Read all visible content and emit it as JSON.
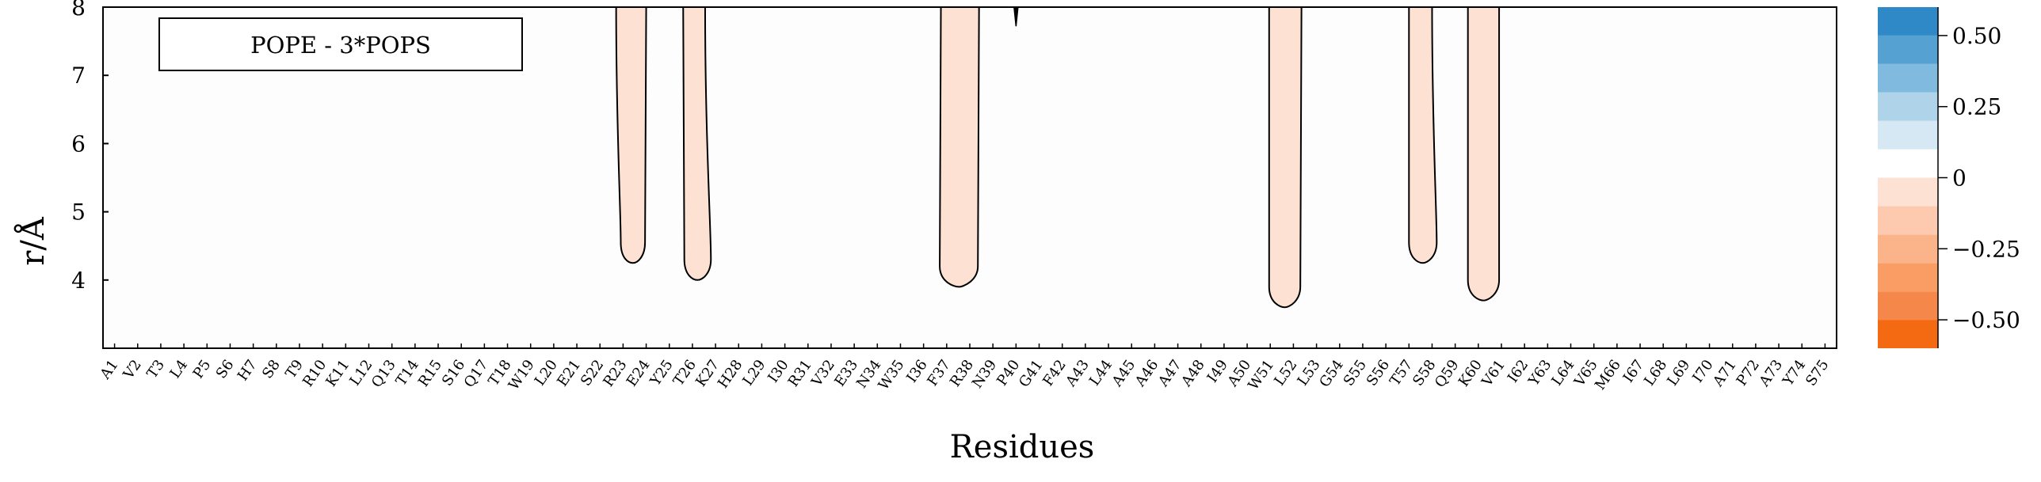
{
  "chart_data": {
    "type": "contour",
    "title": "",
    "legend_label": "POPE - 3*POPS",
    "xlabel": "Residues",
    "ylabel": "r/Å",
    "ylim": [
      3,
      8
    ],
    "yticks": [
      4,
      5,
      6,
      7,
      8
    ],
    "residues": [
      "A1",
      "V2",
      "T3",
      "L4",
      "P5",
      "S6",
      "H7",
      "S8",
      "T9",
      "R10",
      "K11",
      "L12",
      "Q13",
      "T14",
      "R15",
      "S16",
      "Q17",
      "T18",
      "W19",
      "L20",
      "E21",
      "S22",
      "R23",
      "E24",
      "Y25",
      "T26",
      "K27",
      "H28",
      "L29",
      "I30",
      "R31",
      "V32",
      "E33",
      "N34",
      "W35",
      "I36",
      "F37",
      "R38",
      "N39",
      "P40",
      "G41",
      "F42",
      "A43",
      "L44",
      "A45",
      "A46",
      "A47",
      "A48",
      "I49",
      "A50",
      "W51",
      "L52",
      "L53",
      "G54",
      "S55",
      "S56",
      "T57",
      "S58",
      "Q59",
      "K60",
      "V61",
      "I62",
      "Y63",
      "L64",
      "V65",
      "M66",
      "I67",
      "L68",
      "L69",
      "I70",
      "A71",
      "P72",
      "A73",
      "Y74",
      "S75"
    ],
    "depletion_regions": [
      {
        "left_top": 22.7,
        "left_bottom": 22.9,
        "right_top": 24.0,
        "right_bottom": 23.95,
        "min_r": 4.25,
        "level": -0.1
      },
      {
        "left_top": 25.6,
        "left_bottom": 25.65,
        "right_top": 26.55,
        "right_bottom": 26.8,
        "min_r": 4.0,
        "level": -0.1
      },
      {
        "left_top": 36.75,
        "left_bottom": 36.7,
        "right_top": 38.4,
        "right_bottom": 38.35,
        "min_r": 3.9,
        "level": -0.1
      },
      {
        "left_top": 50.95,
        "left_bottom": 50.95,
        "right_top": 52.35,
        "right_bottom": 52.3,
        "min_r": 3.6,
        "level": -0.1
      },
      {
        "left_top": 57.0,
        "left_bottom": 57.0,
        "right_top": 58.0,
        "right_bottom": 58.2,
        "min_r": 4.25,
        "level": -0.1
      },
      {
        "left_top": 59.55,
        "left_bottom": 59.55,
        "right_top": 60.9,
        "right_bottom": 60.9,
        "min_r": 3.7,
        "level": -0.1
      }
    ],
    "spike": {
      "x": 40.0,
      "from_r": 8.0,
      "to_r": 7.72
    },
    "colorbar": {
      "levels": [
        -0.6,
        -0.5,
        -0.4,
        -0.3,
        -0.2,
        -0.1,
        0.0,
        0.1,
        0.2,
        0.3,
        0.4,
        0.5,
        0.6
      ],
      "colors": [
        "#f46a12",
        "#f6874a",
        "#f99d65",
        "#fbb48a",
        "#fdcab0",
        "#fde2d4",
        "#ffffff",
        "#d6e8f4",
        "#afd4ea",
        "#80bbdf",
        "#55a1d2",
        "#2e89c6",
        "#0e77bb"
      ],
      "ticks": [
        0.5,
        0.25,
        0,
        -0.25,
        -0.5
      ],
      "tick_labels": [
        "0.50",
        "0.25",
        "0",
        "−0.25",
        "−0.50"
      ]
    }
  }
}
